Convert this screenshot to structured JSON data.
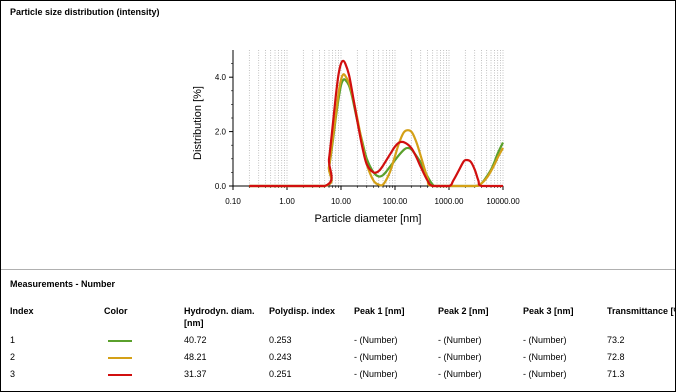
{
  "chart_title": "Particle size distribution (intensity)",
  "chart_data": {
    "type": "line",
    "title": "Particle size distribution (intensity)",
    "xlabel": "Particle diameter [nm]",
    "ylabel": "Distribution [%]",
    "x_scale": "log",
    "xlim": [
      0.1,
      10000
    ],
    "ylim": [
      0,
      5
    ],
    "x_ticks": [
      "0.10",
      "1.00",
      "10.00",
      "100.00",
      "1000.00",
      "10000.00"
    ],
    "y_ticks": [
      "0.0",
      "2.0",
      "4.0"
    ],
    "grid": "vertical dotted (log minor)",
    "series": [
      {
        "color": "#5aa02c",
        "x": [
          0.2,
          5,
          6,
          7,
          8,
          9,
          10,
          11,
          12,
          14,
          16,
          20,
          25,
          30,
          40,
          50,
          60,
          70,
          80,
          100,
          120,
          150,
          170,
          200,
          250,
          300,
          400,
          500,
          600,
          3000,
          4000,
          5000,
          6000,
          7000,
          8000,
          10000
        ],
        "y": [
          0,
          0,
          0.7,
          1.6,
          2.5,
          3.2,
          3.7,
          3.9,
          3.9,
          3.7,
          3.3,
          2.4,
          1.6,
          1.0,
          0.5,
          0.35,
          0.4,
          0.55,
          0.7,
          0.95,
          1.15,
          1.35,
          1.4,
          1.35,
          1.1,
          0.85,
          0.35,
          0.05,
          0,
          0,
          0.1,
          0.35,
          0.6,
          0.9,
          1.2,
          1.6
        ]
      },
      {
        "color": "#d4a017",
        "x": [
          0.2,
          5,
          6,
          7,
          8,
          9,
          10,
          11,
          12,
          14,
          16,
          20,
          25,
          30,
          40,
          50,
          60,
          80,
          100,
          120,
          150,
          200,
          250,
          300,
          400,
          500,
          3000,
          4000,
          5000,
          6000,
          7000,
          8000,
          10000
        ],
        "y": [
          0,
          0,
          0.7,
          1.7,
          2.6,
          3.4,
          3.9,
          4.1,
          4.05,
          3.8,
          3.4,
          2.5,
          1.5,
          0.8,
          0.2,
          0.05,
          0.05,
          0.5,
          1.1,
          1.6,
          2.0,
          2.0,
          1.6,
          1.1,
          0.3,
          0,
          0,
          0.1,
          0.3,
          0.55,
          0.8,
          1.05,
          1.4
        ]
      },
      {
        "color": "#d10f0f",
        "x": [
          0.2,
          5,
          6,
          7,
          8,
          9,
          10,
          11,
          12,
          14,
          16,
          20,
          25,
          30,
          40,
          50,
          60,
          80,
          100,
          120,
          150,
          200,
          250,
          300,
          400,
          500,
          1000,
          1200,
          1500,
          1800,
          2000,
          2500,
          3000,
          3500,
          4000,
          10000
        ],
        "y": [
          0,
          0,
          1.0,
          2.2,
          3.3,
          4.1,
          4.5,
          4.6,
          4.5,
          4.1,
          3.5,
          2.4,
          1.4,
          0.8,
          0.5,
          0.55,
          0.75,
          1.15,
          1.45,
          1.6,
          1.6,
          1.4,
          1.05,
          0.7,
          0.2,
          0,
          0,
          0.2,
          0.55,
          0.85,
          0.95,
          0.9,
          0.6,
          0.2,
          0,
          0
        ]
      }
    ]
  },
  "measurements": {
    "title": "Measurements - Number",
    "headers": [
      "Index",
      "Color",
      "Hydrodyn. diam. [nm]",
      "Polydisp. index",
      "Peak 1 [nm]",
      "Peak 2 [nm]",
      "Peak 3 [nm]",
      "Transmittance [%]"
    ],
    "rows": [
      {
        "index": "1",
        "color": "#5aa02c",
        "diam": "40.72",
        "pdi": "0.253",
        "peak1": "- (Number)",
        "peak2": "- (Number)",
        "peak3": "- (Number)",
        "trans": "73.2"
      },
      {
        "index": "2",
        "color": "#d4a017",
        "diam": "48.21",
        "pdi": "0.243",
        "peak1": "- (Number)",
        "peak2": "- (Number)",
        "peak3": "- (Number)",
        "trans": "72.8"
      },
      {
        "index": "3",
        "color": "#d10f0f",
        "diam": "31.37",
        "pdi": "0.251",
        "peak1": "- (Number)",
        "peak2": "- (Number)",
        "peak3": "- (Number)",
        "trans": "71.3"
      }
    ]
  }
}
